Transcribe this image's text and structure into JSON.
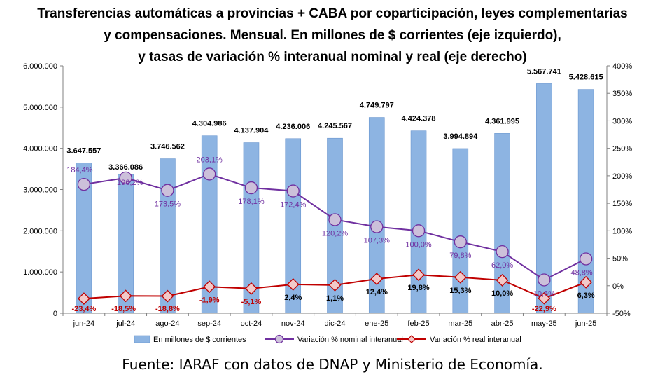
{
  "title_lines": [
    "Transferencias automáticas  a provincias + CABA por coparticipación,  leyes complementarias",
    "y compensaciones.  Mensual. En millones de $ corrientes (eje izquierdo),",
    "y tasas de variación  % interanual nominal y real (eje derecho)"
  ],
  "source": "Fuente: IARAF con datos de DNAP y Ministerio de Economía.",
  "colors": {
    "bar": "#8db4e2",
    "bar_stroke": "#6a96cf",
    "nominal": "#7030a0",
    "nominal_fill": "#ccc0da",
    "real": "#c00000",
    "real_fill": "#f2c9c9"
  },
  "chart_data": {
    "type": "bar",
    "categories": [
      "jun-24",
      "jul-24",
      "ago-24",
      "sep-24",
      "oct-24",
      "nov-24",
      "dic-24",
      "ene-25",
      "feb-25",
      "mar-25",
      "abr-25",
      "may-25",
      "jun-25"
    ],
    "series": [
      {
        "name": "En millones de $ corrientes",
        "type": "bar",
        "axis": "left",
        "values": [
          3647557,
          3366086,
          3746562,
          4304986,
          4137904,
          4236006,
          4245567,
          4749797,
          4424378,
          3994894,
          4361995,
          5567741,
          5428615
        ],
        "labels": [
          "3.647.557",
          "3.366.086",
          "3.746.562",
          "4.304.986",
          "4.137.904",
          "4.236.006",
          "4.245.567",
          "4.749.797",
          "4.424.378",
          "3.994.894",
          "4.361.995",
          "5.567.741",
          "5.428.615"
        ]
      },
      {
        "name": "Variación % nominal interanual",
        "type": "line",
        "axis": "right",
        "values": [
          184.4,
          196.2,
          173.5,
          203.1,
          178.1,
          172.4,
          120.2,
          107.3,
          100.0,
          79.8,
          62.0,
          10.6,
          48.8
        ],
        "labels": [
          "184,4%",
          "196,2%",
          "173,5%",
          "203,1%",
          "178,1%",
          "172,4%",
          "120,2%",
          "107,3%",
          "100,0%",
          "79,8%",
          "62,0%",
          "10,6%",
          "48,8%"
        ]
      },
      {
        "name": "Variación % real interanual",
        "type": "line",
        "axis": "right",
        "values": [
          -23.4,
          -18.5,
          -18.8,
          -1.9,
          -5.1,
          2.4,
          1.1,
          12.4,
          19.8,
          15.3,
          10.0,
          -22.9,
          6.3
        ],
        "labels": [
          "-23,4%",
          "-18,5%",
          "-18,8%",
          "-1,9%",
          "-5,1%",
          "2,4%",
          "1,1%",
          "12,4%",
          "19,8%",
          "15,3%",
          "10,0%",
          "-22,9%",
          "6,3%"
        ]
      }
    ],
    "y_left": {
      "min": 0,
      "max": 6000000,
      "ticks": [
        "0",
        "1.000.000",
        "2.000.000",
        "3.000.000",
        "4.000.000",
        "5.000.000",
        "6.000.000"
      ]
    },
    "y_right": {
      "min": -50,
      "max": 400,
      "ticks": [
        "-50%",
        "0%",
        "50%",
        "100%",
        "150%",
        "200%",
        "250%",
        "300%",
        "350%",
        "400%"
      ]
    },
    "legend_position": "bottom",
    "grid": false
  }
}
